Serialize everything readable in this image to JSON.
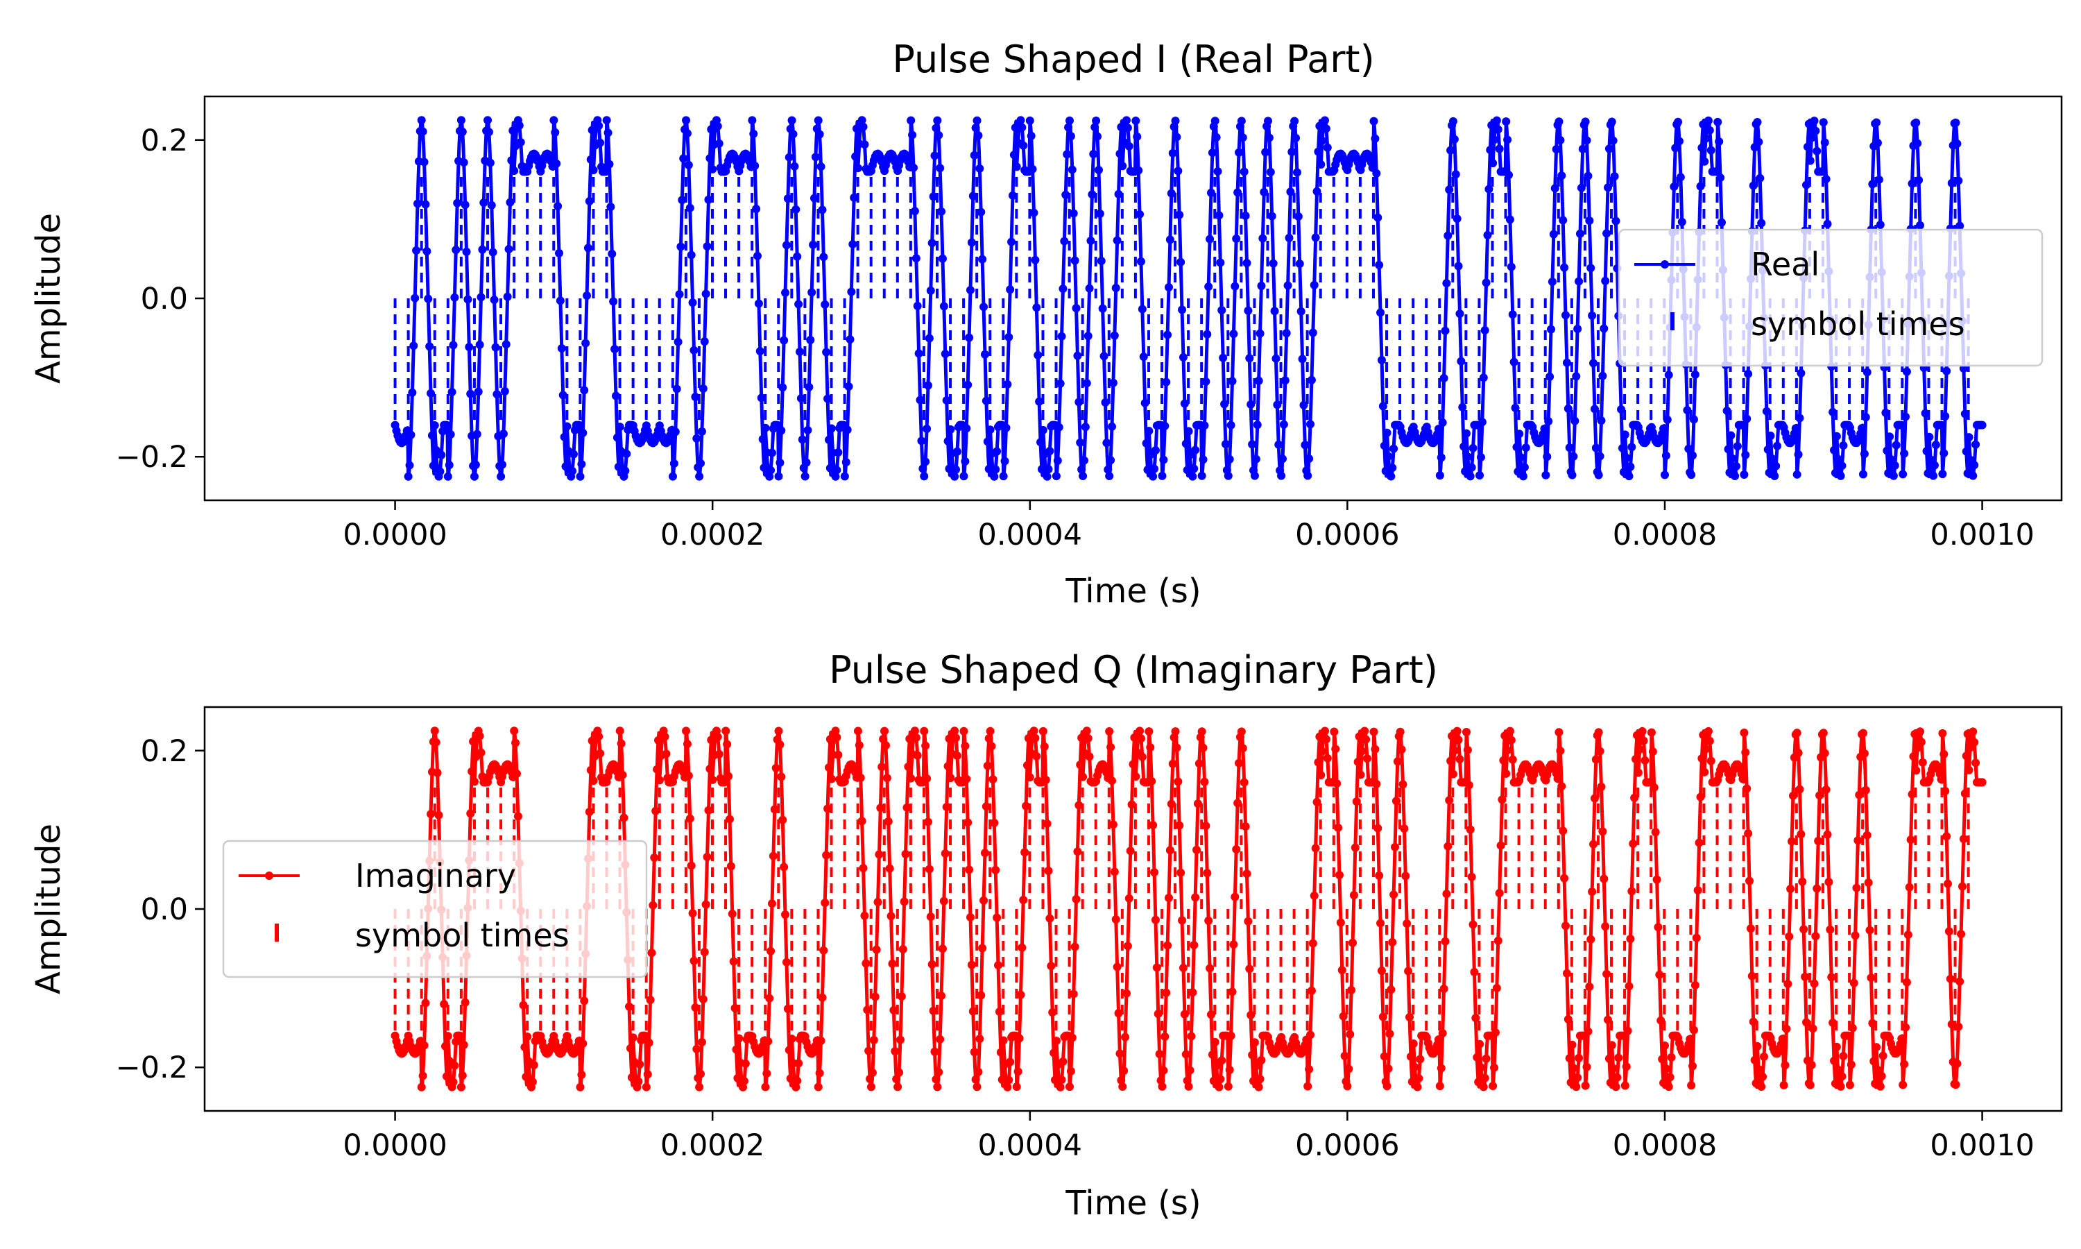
{
  "colors": {
    "i_series": "#0000ff",
    "q_series": "#ff0000",
    "axes": "#000000"
  },
  "chart_data": [
    {
      "type": "line",
      "title": "Pulse Shaped I (Real Part)",
      "xlabel": "Time (s)",
      "ylabel": "Amplitude",
      "xlim": [
        -0.00012,
        0.00105
      ],
      "ylim": [
        -0.255,
        0.255
      ],
      "xticks": [
        "0.0000",
        "0.0002",
        "0.0004",
        "0.0006",
        "0.0008",
        "0.0010"
      ],
      "xtick_values": [
        0,
        0.0002,
        0.0004,
        0.0006,
        0.0008,
        0.001
      ],
      "yticks": [
        "−0.2",
        "0.0",
        "0.2"
      ],
      "ytick_values": [
        -0.2,
        0,
        0.2
      ],
      "legend": {
        "placement": "center-right",
        "entries": [
          "Real",
          "symbol times"
        ]
      },
      "grid": false,
      "symbol_period": 8.33e-06,
      "symbol_count": 120,
      "marker": "dot",
      "series": [
        {
          "name": "Real",
          "kind": "line-with-markers",
          "color": "#0000ff",
          "symbol_levels": [
            -1,
            -1,
            1,
            -1,
            -1,
            1,
            -1,
            1,
            -1,
            1,
            1,
            1,
            1,
            -1,
            -1,
            1,
            1,
            -1,
            -1,
            -1,
            -1,
            -1,
            1,
            -1,
            1,
            1,
            1,
            1,
            -1,
            -1,
            1,
            -1,
            1,
            -1,
            -1,
            1,
            1,
            1,
            1,
            1,
            -1,
            1,
            -1,
            -1,
            1,
            -1,
            -1,
            1,
            1,
            -1,
            -1,
            1,
            -1,
            1,
            -1,
            1,
            1,
            -1,
            -1,
            1,
            -1,
            -1,
            1,
            -1,
            1,
            -1,
            1,
            -1,
            1,
            -1,
            1,
            1,
            1,
            1,
            1,
            -1,
            -1,
            -1,
            -1,
            -1,
            1,
            -1,
            -1,
            1,
            1,
            -1,
            -1,
            -1,
            1,
            -1,
            1,
            -1,
            1,
            -1,
            -1,
            -1,
            -1,
            1,
            -1,
            1,
            1,
            -1,
            -1,
            1,
            -1,
            -1,
            -1,
            1,
            1,
            -1,
            -1,
            -1,
            1,
            -1,
            -1,
            1,
            -1,
            -1,
            1,
            -1
          ],
          "symbol_amplitude": 0.16,
          "overshoot_amplitude": 0.225
        },
        {
          "name": "symbol times",
          "kind": "dashed-stems",
          "color": "#0000ff"
        }
      ]
    },
    {
      "type": "line",
      "title": "Pulse Shaped Q (Imaginary Part)",
      "xlabel": "Time (s)",
      "ylabel": "Amplitude",
      "xlim": [
        -0.00012,
        0.00105
      ],
      "ylim": [
        -0.255,
        0.255
      ],
      "xticks": [
        "0.0000",
        "0.0002",
        "0.0004",
        "0.0006",
        "0.0008",
        "0.0010"
      ],
      "xtick_values": [
        0,
        0.0002,
        0.0004,
        0.0006,
        0.0008,
        0.001
      ],
      "yticks": [
        "−0.2",
        "0.0",
        "0.2"
      ],
      "ytick_values": [
        -0.2,
        0,
        0.2
      ],
      "legend": {
        "placement": "center-left",
        "entries": [
          "Imaginary",
          "symbol times"
        ]
      },
      "grid": false,
      "symbol_period": 8.33e-06,
      "symbol_count": 120,
      "marker": "dot",
      "series": [
        {
          "name": "Imaginary",
          "kind": "line-with-markers",
          "color": "#ff0000",
          "symbol_levels": [
            -1,
            -1,
            -1,
            1,
            -1,
            -1,
            1,
            1,
            1,
            1,
            -1,
            -1,
            -1,
            -1,
            -1,
            1,
            1,
            1,
            -1,
            -1,
            1,
            1,
            1,
            -1,
            1,
            1,
            -1,
            -1,
            -1,
            1,
            -1,
            -1,
            -1,
            1,
            1,
            1,
            -1,
            1,
            -1,
            1,
            1,
            -1,
            1,
            1,
            -1,
            1,
            -1,
            -1,
            1,
            1,
            -1,
            -1,
            1,
            1,
            1,
            -1,
            1,
            1,
            -1,
            1,
            -1,
            1,
            -1,
            -1,
            1,
            -1,
            -1,
            -1,
            -1,
            -1,
            1,
            1,
            -1,
            1,
            1,
            -1,
            1,
            -1,
            -1,
            -1,
            1,
            1,
            -1,
            -1,
            1,
            1,
            1,
            1,
            1,
            -1,
            -1,
            1,
            -1,
            -1,
            1,
            1,
            -1,
            -1,
            -1,
            1,
            1,
            1,
            1,
            -1,
            -1,
            -1,
            1,
            -1,
            1,
            -1,
            -1,
            1,
            -1,
            -1,
            -1,
            1,
            1,
            1,
            -1,
            1
          ],
          "symbol_amplitude": 0.16,
          "overshoot_amplitude": 0.225
        },
        {
          "name": "symbol times",
          "kind": "dashed-stems",
          "color": "#ff0000"
        }
      ]
    }
  ]
}
